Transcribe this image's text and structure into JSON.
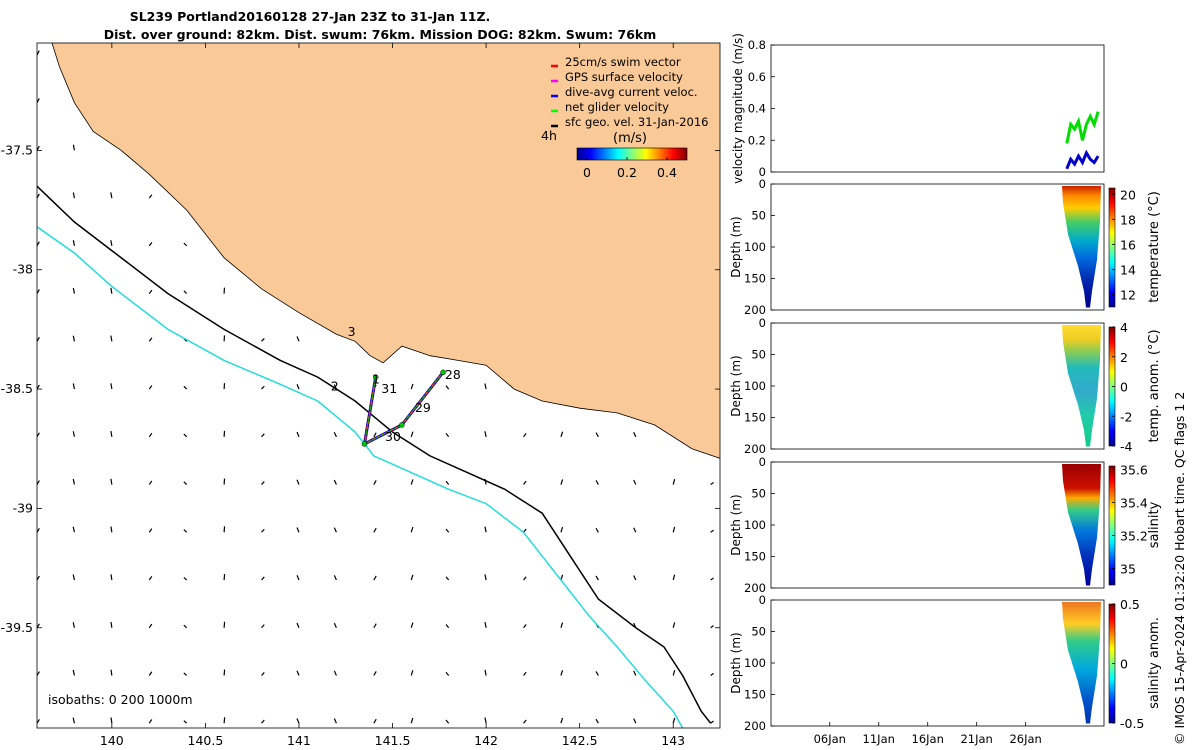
{
  "chart_data": [
    {
      "type": "map",
      "title": "SL239 Portland20160128 27-Jan 23Z to 31-Jan 11Z.",
      "subtitle": "Dist. over ground: 82km. Dist. swum: 76km. Mission DOG: 82km. Swum: 76km",
      "x_ticks": [
        "140",
        "140.5",
        "141",
        "141.5",
        "142",
        "142.5",
        "143"
      ],
      "x_tick_values": [
        140,
        140.5,
        141,
        141.5,
        142,
        142.5,
        143
      ],
      "y_ticks": [
        "-37.5",
        "-38",
        "-38.5",
        "-39",
        "-39.5"
      ],
      "y_tick_values": [
        -37.5,
        -38,
        -38.5,
        -39,
        -39.5
      ],
      "xlim": [
        139.6,
        143.25
      ],
      "ylim": [
        -39.92,
        -37.05
      ],
      "legend": [
        {
          "label": "25cm/s swim vector",
          "color": "#ff0000"
        },
        {
          "label": "GPS surface velocity",
          "color": "#ff00ff"
        },
        {
          "label": "dive-avg current veloc.",
          "color": "#0000ff"
        },
        {
          "label": "net glider velocity",
          "color": "#00ff00"
        },
        {
          "label": "sfc geo. vel. 31-Jan-2016",
          "color": "#000000"
        }
      ],
      "colorbar": {
        "label": "(m/s)",
        "ticks": [
          "0",
          "0.2",
          "0.4"
        ],
        "tick_values": [
          0,
          0.2,
          0.4
        ],
        "range": [
          -0.05,
          0.5
        ],
        "note": "4h"
      },
      "isobaths_label": "isobaths: 0   200  1000m",
      "track_points": [
        {
          "lon": 141.77,
          "lat": -38.43
        },
        {
          "lon": 141.55,
          "lat": -38.65
        },
        {
          "lon": 141.35,
          "lat": -38.73
        },
        {
          "lon": 141.41,
          "lat": -38.45
        }
      ],
      "day_labels": [
        {
          "text": "1",
          "lon": 141.39,
          "lat": -38.46
        },
        {
          "text": "2",
          "lon": 141.17,
          "lat": -38.49
        },
        {
          "text": "3",
          "lon": 141.26,
          "lat": -38.26
        },
        {
          "text": "28",
          "lon": 141.78,
          "lat": -38.44
        },
        {
          "text": "29",
          "lon": 141.62,
          "lat": -38.58
        },
        {
          "text": "30",
          "lon": 141.46,
          "lat": -38.7
        },
        {
          "text": "31",
          "lon": 141.44,
          "lat": -38.5
        }
      ],
      "coastline": [
        [
          139.68,
          -37.05
        ],
        [
          139.72,
          -37.15
        ],
        [
          139.8,
          -37.3
        ],
        [
          139.9,
          -37.42
        ],
        [
          140.05,
          -37.5
        ],
        [
          140.2,
          -37.6
        ],
        [
          140.4,
          -37.75
        ],
        [
          140.6,
          -37.95
        ],
        [
          140.8,
          -38.08
        ],
        [
          141.0,
          -38.18
        ],
        [
          141.2,
          -38.27
        ],
        [
          141.3,
          -38.3
        ],
        [
          141.38,
          -38.36
        ],
        [
          141.45,
          -38.39
        ],
        [
          141.55,
          -38.32
        ],
        [
          141.7,
          -38.36
        ],
        [
          141.85,
          -38.38
        ],
        [
          142.0,
          -38.4
        ],
        [
          142.15,
          -38.5
        ],
        [
          142.3,
          -38.55
        ],
        [
          142.5,
          -38.58
        ],
        [
          142.7,
          -38.6
        ],
        [
          142.9,
          -38.65
        ],
        [
          143.1,
          -38.75
        ],
        [
          143.25,
          -38.79
        ]
      ],
      "isobath_200": [
        [
          139.6,
          -37.65
        ],
        [
          139.8,
          -37.8
        ],
        [
          140.0,
          -37.92
        ],
        [
          140.3,
          -38.1
        ],
        [
          140.6,
          -38.25
        ],
        [
          140.9,
          -38.38
        ],
        [
          141.1,
          -38.45
        ],
        [
          141.3,
          -38.55
        ],
        [
          141.5,
          -38.68
        ],
        [
          141.7,
          -38.78
        ],
        [
          141.9,
          -38.85
        ],
        [
          142.1,
          -38.92
        ],
        [
          142.3,
          -39.02
        ],
        [
          142.45,
          -39.2
        ],
        [
          142.6,
          -39.38
        ],
        [
          142.8,
          -39.5
        ],
        [
          142.95,
          -39.58
        ],
        [
          143.05,
          -39.7
        ],
        [
          143.15,
          -39.85
        ],
        [
          143.2,
          -39.9
        ]
      ],
      "isobath_1000": [
        [
          139.6,
          -37.82
        ],
        [
          139.8,
          -37.93
        ],
        [
          140.0,
          -38.07
        ],
        [
          140.3,
          -38.25
        ],
        [
          140.6,
          -38.38
        ],
        [
          140.9,
          -38.48
        ],
        [
          141.1,
          -38.55
        ],
        [
          141.3,
          -38.68
        ],
        [
          141.4,
          -38.78
        ],
        [
          141.6,
          -38.85
        ],
        [
          141.8,
          -38.92
        ],
        [
          142.0,
          -38.98
        ],
        [
          142.2,
          -39.1
        ],
        [
          142.3,
          -39.2
        ],
        [
          142.4,
          -39.3
        ],
        [
          142.55,
          -39.45
        ],
        [
          142.7,
          -39.58
        ],
        [
          142.85,
          -39.72
        ],
        [
          143.0,
          -39.85
        ],
        [
          143.05,
          -39.92
        ]
      ]
    },
    {
      "type": "line",
      "ylabel": "velocity magnitude (m/s)",
      "y_ticks": [
        "0",
        "0.2",
        "0.4",
        "0.6",
        "0.8"
      ],
      "y_tick_values": [
        0,
        0.2,
        0.4,
        0.6,
        0.8
      ],
      "ylim": [
        0,
        0.8
      ],
      "xlim": [
        0,
        34
      ],
      "series": [
        {
          "name": "net glider velocity",
          "color": "#00dd00",
          "x": [
            30.2,
            30.6,
            31.0,
            31.4,
            31.8,
            32.2,
            32.6,
            33.0,
            33.4
          ],
          "values": [
            0.18,
            0.3,
            0.27,
            0.32,
            0.2,
            0.3,
            0.35,
            0.3,
            0.38
          ]
        },
        {
          "name": "dive-avg current veloc.",
          "color": "#0000cc",
          "x": [
            30.2,
            30.6,
            31.0,
            31.4,
            31.8,
            32.2,
            32.6,
            33.0,
            33.4
          ],
          "values": [
            0.02,
            0.08,
            0.05,
            0.1,
            0.06,
            0.12,
            0.08,
            0.06,
            0.1
          ]
        }
      ]
    },
    {
      "type": "heatmap",
      "ylabel": "Depth (m)",
      "colorbar_label": "temperature (°C)",
      "y_ticks": [
        "0",
        "50",
        "100",
        "150",
        "200"
      ],
      "y_tick_values": [
        0,
        50,
        100,
        150,
        200
      ],
      "colorbar_ticks": [
        "12",
        "14",
        "16",
        "18",
        "20"
      ],
      "colorbar_tick_values": [
        12,
        14,
        16,
        18,
        20
      ],
      "colorbar_range": [
        11,
        20.5
      ]
    },
    {
      "type": "heatmap",
      "ylabel": "Depth (m)",
      "colorbar_label": "temp. anom. (°C)",
      "y_ticks": [
        "0",
        "50",
        "100",
        "150",
        "200"
      ],
      "y_tick_values": [
        0,
        50,
        100,
        150,
        200
      ],
      "colorbar_ticks": [
        "4",
        "2",
        "0",
        "-2",
        "-4"
      ],
      "colorbar_tick_values": [
        4,
        2,
        0,
        -2,
        -4
      ],
      "colorbar_range": [
        -4,
        4
      ]
    },
    {
      "type": "heatmap",
      "ylabel": "Depth (m)",
      "colorbar_label": "salinity",
      "y_ticks": [
        "0",
        "50",
        "100",
        "150",
        "200"
      ],
      "y_tick_values": [
        0,
        50,
        100,
        150,
        200
      ],
      "colorbar_ticks": [
        "35.6",
        "35.4",
        "35.2",
        "35"
      ],
      "colorbar_tick_values": [
        35.6,
        35.4,
        35.2,
        35.0
      ],
      "colorbar_range": [
        34.9,
        35.62
      ]
    },
    {
      "type": "heatmap",
      "ylabel": "Depth (m)",
      "colorbar_label": "salinity anom.",
      "y_ticks": [
        "0",
        "50",
        "100",
        "150",
        "200"
      ],
      "y_tick_values": [
        0,
        50,
        100,
        150,
        200
      ],
      "colorbar_ticks": [
        "0.5",
        "0",
        "-0.5"
      ],
      "colorbar_tick_values": [
        0.5,
        0,
        -0.5
      ],
      "colorbar_range": [
        -0.5,
        0.5
      ],
      "x_ticks": [
        "06Jan",
        "11Jan",
        "16Jan",
        "21Jan",
        "26Jan"
      ],
      "x_tick_values": [
        6,
        11,
        16,
        21,
        26
      ],
      "xlim": [
        0,
        34
      ]
    }
  ],
  "footer": {
    "copyright": "© IMOS 15-Apr-2024 01:32:20 Hobart time. QC flags 1  2"
  },
  "colors": {
    "land": "#f9c998",
    "isobath_200": "#000000",
    "isobath_1000": "#22dddd",
    "track": "#ff0000"
  }
}
